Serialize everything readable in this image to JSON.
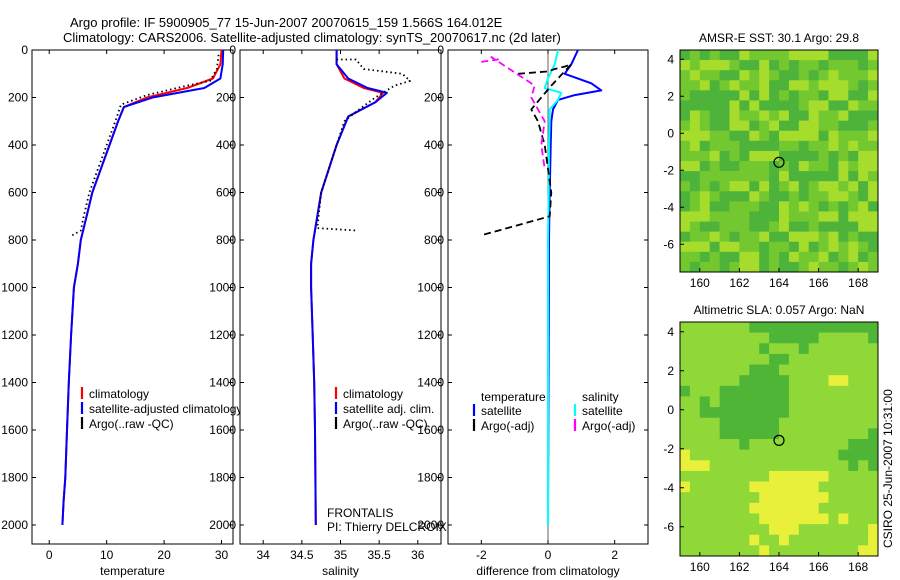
{
  "header": {
    "line1": "Argo profile: IF 5900905_77 15-Jun-2007 20070615_159 1.566S 164.012E",
    "line2": "Climatology: CARS2006. Satellite-adjusted climatology: synTS_20070617.nc (2d later)"
  },
  "stamp": "CSIRO 25-Jun-2007 10:31:00",
  "colors": {
    "climatology": "#ff0000",
    "satellite": "#0000ff",
    "argo": "#000000",
    "sat_salinity": "#00ffff",
    "argo_salinity": "#ff00ff",
    "marker": "#000000"
  },
  "chart_data": [
    {
      "type": "line",
      "title": "",
      "xlabel": "temperature",
      "ylabel": "",
      "xlim": [
        -3,
        32
      ],
      "ylim": [
        2080,
        0
      ],
      "y_inverted": true,
      "xticks": [
        0,
        10,
        20,
        30
      ],
      "yticks": [
        0,
        200,
        400,
        600,
        800,
        1000,
        1200,
        1400,
        1600,
        1800,
        2000
      ],
      "legend": {
        "position": "bottom-right",
        "entries": [
          "climatology",
          "satellite-adjusted climatology",
          "Argo(..raw -QC)"
        ]
      },
      "series": [
        {
          "name": "climatology",
          "color": "#ff0000",
          "style": "solid",
          "x": [
            30,
            29.8,
            28.5,
            24,
            17,
            13,
            12,
            10.5,
            9,
            7.5,
            6.5,
            5.5,
            5,
            4.3,
            3.8,
            3.4,
            3.1,
            2.8,
            2.5,
            2.3
          ],
          "y": [
            0,
            60,
            120,
            160,
            200,
            240,
            300,
            400,
            500,
            600,
            700,
            800,
            900,
            1000,
            1200,
            1400,
            1600,
            1800,
            1900,
            2000
          ]
        },
        {
          "name": "satellite-adjusted climatology",
          "color": "#0000ff",
          "style": "solid",
          "x": [
            30.3,
            30.2,
            29.8,
            27,
            18,
            13,
            12,
            10.5,
            9,
            7.5,
            6.5,
            5.5,
            5,
            4.3,
            3.8,
            3.4,
            3.1,
            2.8,
            2.5,
            2.3
          ],
          "y": [
            0,
            60,
            120,
            160,
            200,
            240,
            300,
            400,
            500,
            600,
            700,
            800,
            900,
            1000,
            1200,
            1400,
            1600,
            1800,
            1900,
            2000
          ]
        },
        {
          "name": "Argo(..raw -QC)",
          "color": "#000000",
          "style": "dotted",
          "x": [
            29.5,
            29.2,
            28,
            24,
            17,
            12.5,
            11.5,
            10,
            8.5,
            7,
            6,
            5.5,
            4
          ],
          "y": [
            20,
            80,
            130,
            150,
            190,
            230,
            300,
            400,
            500,
            600,
            700,
            760,
            780
          ]
        }
      ]
    },
    {
      "type": "line",
      "title": "",
      "xlabel": "salinity",
      "ylabel": "",
      "xlim": [
        33.7,
        36.3
      ],
      "ylim": [
        2080,
        0
      ],
      "y_inverted": true,
      "xticks": [
        34,
        34.5,
        35,
        35.5,
        36
      ],
      "yticks": [
        0,
        200,
        400,
        600,
        800,
        1000,
        1200,
        1400,
        1600,
        1800,
        2000
      ],
      "legend": {
        "position": "bottom-right",
        "entries": [
          "climatology",
          "satellite adj. clim.",
          "Argo(..raw -QC)"
        ]
      },
      "annotations": [
        "FRONTALIS",
        "PI: Thierry DELCROIX"
      ],
      "series": [
        {
          "name": "climatology",
          "color": "#ff0000",
          "style": "solid",
          "x": [
            34.95,
            34.95,
            35.05,
            35.3,
            35.55,
            35.45,
            35.1,
            34.95,
            34.85,
            34.75,
            34.7,
            34.65,
            34.62,
            34.62,
            34.64,
            34.66,
            34.67,
            34.68
          ],
          "y": [
            0,
            60,
            120,
            160,
            180,
            220,
            280,
            400,
            500,
            600,
            700,
            800,
            900,
            1000,
            1200,
            1400,
            1600,
            2000
          ]
        },
        {
          "name": "satellite adj. clim.",
          "color": "#0000ff",
          "style": "solid",
          "x": [
            34.95,
            34.95,
            35.1,
            35.35,
            35.6,
            35.45,
            35.1,
            34.95,
            34.85,
            34.75,
            34.7,
            34.65,
            34.62,
            34.62,
            34.64,
            34.66,
            34.67,
            34.68
          ],
          "y": [
            0,
            60,
            120,
            160,
            180,
            220,
            280,
            400,
            500,
            600,
            700,
            800,
            900,
            1000,
            1200,
            1400,
            1600,
            2000
          ]
        },
        {
          "name": "Argo(..raw -QC)",
          "color": "#000000",
          "style": "dotted",
          "x": [
            34.95,
            35.2,
            35.3,
            35.8,
            35.9,
            35.7,
            35.45,
            35.2,
            35.05,
            34.95,
            34.85,
            34.75,
            34.7,
            35.2
          ],
          "y": [
            40,
            40,
            80,
            100,
            130,
            150,
            200,
            260,
            300,
            400,
            500,
            600,
            750,
            760
          ]
        }
      ]
    },
    {
      "type": "line",
      "title": "",
      "xlabel": "difference from climatology",
      "ylabel": "",
      "xlim": [
        -3,
        3
      ],
      "ylim": [
        2080,
        0
      ],
      "y_inverted": true,
      "xticks": [
        -2,
        0,
        2
      ],
      "yticks": [
        0,
        200,
        400,
        600,
        800,
        1000,
        1200,
        1400,
        1600,
        1800,
        2000
      ],
      "legend": {
        "position": "middle",
        "groups": [
          {
            "title": "temperature",
            "entries": [
              "satellite",
              "Argo(-adj)"
            ]
          },
          {
            "title": "salinity",
            "entries": [
              "satellite",
              "Argo(-adj)"
            ]
          }
        ]
      },
      "series": [
        {
          "name": "satellite",
          "group": "temperature",
          "color": "#0000ff",
          "style": "solid",
          "x": [
            0.9,
            0.7,
            0.5,
            1.3,
            1.6,
            0.8,
            0.3,
            0.15,
            0.1,
            0.08,
            0.05,
            0.03,
            0.02,
            0.01,
            0.0
          ],
          "y": [
            0,
            60,
            100,
            140,
            170,
            190,
            210,
            250,
            300,
            400,
            600,
            800,
            1200,
            1600,
            2000
          ]
        },
        {
          "name": "satellite",
          "group": "salinity",
          "color": "#00ffff",
          "style": "solid",
          "x": [
            0.3,
            0.2,
            0.0,
            -0.1,
            0.4,
            0.3,
            0.05,
            0.05,
            0.03,
            0.02,
            0.0,
            0.0,
            0.0,
            0.0
          ],
          "y": [
            0,
            60,
            120,
            160,
            180,
            210,
            250,
            300,
            400,
            600,
            800,
            1200,
            1600,
            2000
          ]
        },
        {
          "name": "Argo(-adj)",
          "group": "temperature",
          "color": "#000000",
          "style": "dashed",
          "x": [
            -0.9,
            0.0,
            0.2,
            0.5,
            0.7,
            0.1,
            -0.5,
            -0.3,
            -0.2,
            -0.1,
            0.0,
            0.1,
            0.05,
            -2.0
          ],
          "y": [
            100,
            90,
            80,
            70,
            60,
            150,
            250,
            300,
            350,
            400,
            500,
            600,
            700,
            780
          ]
        },
        {
          "name": "Argo(-adj)",
          "group": "salinity",
          "color": "#ff00ff",
          "style": "dashed",
          "x": [
            -2.0,
            -1.5,
            -1.7,
            -0.4,
            -0.5,
            -0.3,
            -0.1,
            -0.2,
            -0.1
          ],
          "y": [
            50,
            40,
            30,
            150,
            200,
            250,
            300,
            400,
            500
          ]
        }
      ]
    },
    {
      "type": "heatmap",
      "title": "AMSR-E SST: 30.1 Argo: 29.8",
      "xticks": [
        160,
        162,
        164,
        166,
        168
      ],
      "yticks": [
        -6,
        -4,
        -2,
        0,
        2,
        4
      ],
      "xlim": [
        159,
        169
      ],
      "ylim": [
        -7.5,
        4.5
      ],
      "marker": {
        "lon": 164.0,
        "lat": -1.57,
        "shape": "circle"
      },
      "colormap": [
        "#4db33a",
        "#74c82f",
        "#a6dc2b"
      ]
    },
    {
      "type": "heatmap",
      "title": "Altimetric SLA: 0.057 Argo: NaN",
      "xticks": [
        160,
        162,
        164,
        166,
        168
      ],
      "yticks": [
        -6,
        -4,
        -2,
        0,
        2,
        4
      ],
      "xlim": [
        159,
        169
      ],
      "ylim": [
        -7.5,
        4.5
      ],
      "marker": {
        "lon": 164.0,
        "lat": -1.57,
        "shape": "circle"
      },
      "colormap": [
        "#4fb537",
        "#8fd838",
        "#e8f03a"
      ]
    }
  ]
}
